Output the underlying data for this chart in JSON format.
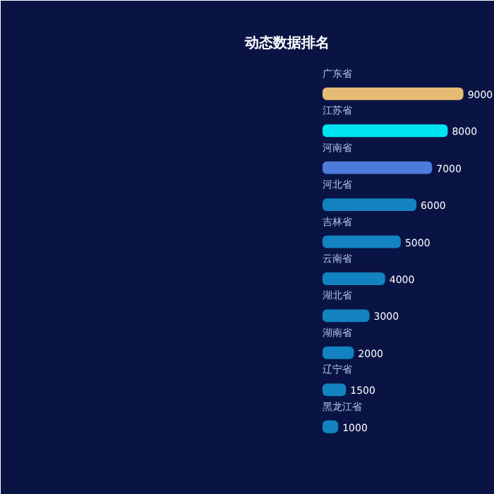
{
  "chart_data": {
    "type": "bar",
    "orientation": "horizontal",
    "title": "动态数据排名",
    "categories": [
      "广东省",
      "江苏省",
      "河南省",
      "河北省",
      "吉林省",
      "云南省",
      "湖北省",
      "湖南省",
      "辽宁省",
      "黑龙江省"
    ],
    "values": [
      9000,
      8000,
      7000,
      6000,
      5000,
      4000,
      3000,
      2000,
      1500,
      1000
    ],
    "colors": [
      "#e6bc74",
      "#00e4f2",
      "#4c7bdc",
      "#1283c0",
      "#1283c0",
      "#1283c0",
      "#1283c0",
      "#1283c0",
      "#1283c0",
      "#1283c0"
    ],
    "xlim": [
      0,
      11000
    ],
    "tick_labels": false,
    "grid": false,
    "data_labels": true
  }
}
